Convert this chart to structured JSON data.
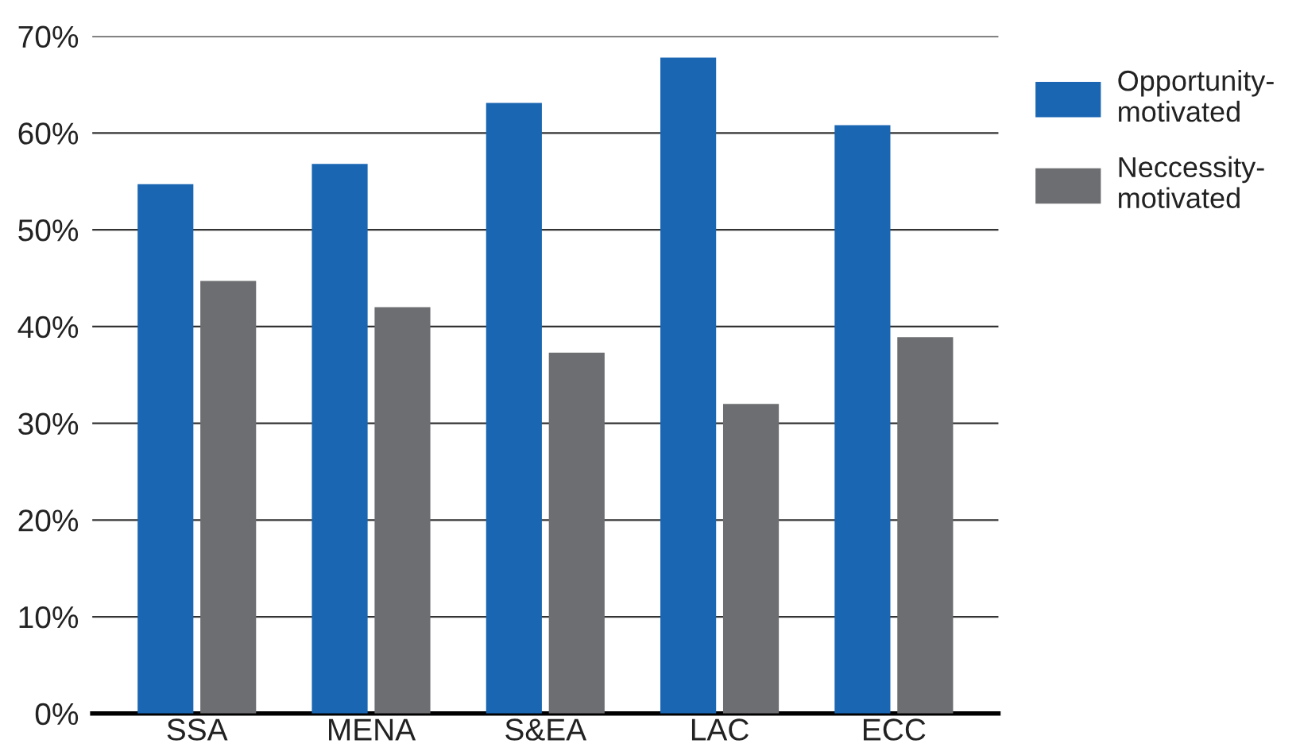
{
  "chart_data": {
    "type": "bar",
    "categories": [
      "SSA",
      "MENA",
      "S&EA",
      "LAC",
      "ECC"
    ],
    "series": [
      {
        "name": "Opportunity-\nmotivated",
        "color": "#1a66b3",
        "values": [
          54.7,
          56.8,
          63.1,
          67.8,
          60.8
        ]
      },
      {
        "name": "Neccessity-\nmotivated",
        "color": "#6d6e71",
        "values": [
          44.7,
          42.0,
          37.3,
          32.0,
          38.9
        ]
      }
    ],
    "ylim": [
      0,
      70
    ],
    "yticks": [
      {
        "value": 0,
        "label": "0%"
      },
      {
        "value": 10,
        "label": "10%"
      },
      {
        "value": 20,
        "label": "20%"
      },
      {
        "value": 30,
        "label": "30%"
      },
      {
        "value": 40,
        "label": "40%"
      },
      {
        "value": 50,
        "label": "50%"
      },
      {
        "value": 60,
        "label": "60%"
      },
      {
        "value": 70,
        "label": "70%"
      }
    ],
    "grid": "y",
    "legend": "top right"
  }
}
